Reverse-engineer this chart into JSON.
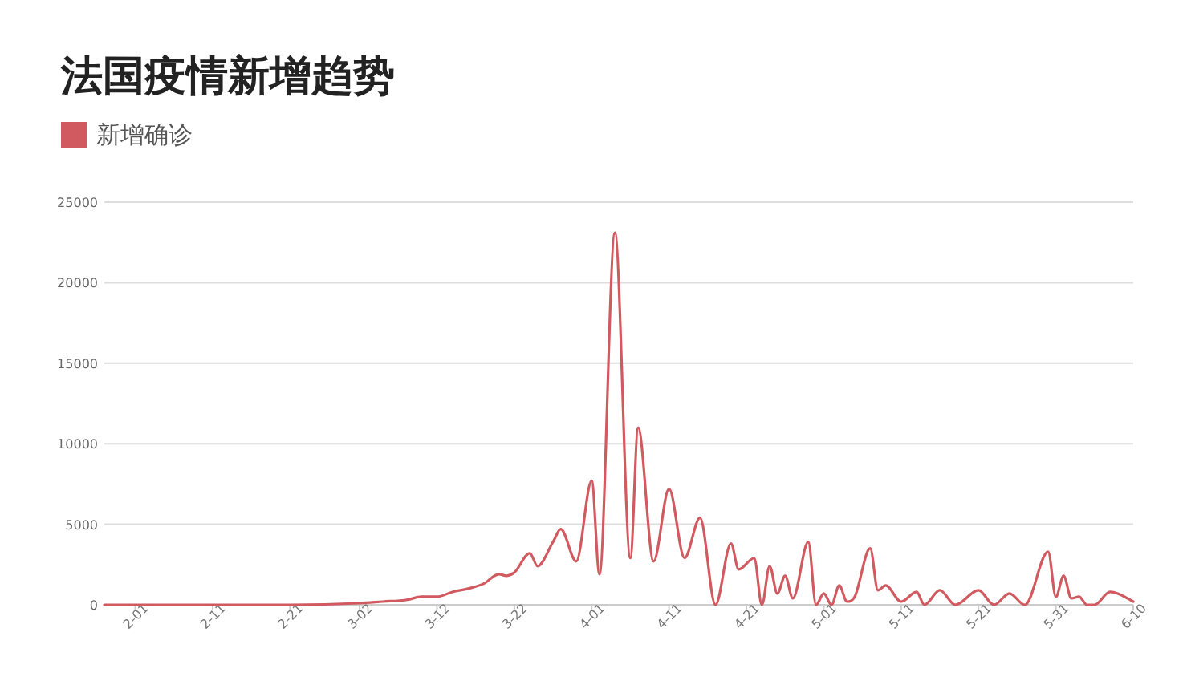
{
  "chart_data": {
    "type": "line",
    "title": "法国疫情新增趋势",
    "legend": "top left",
    "grid": "y",
    "x": [
      "--01-28",
      "--02-01",
      "--02-11",
      "--02-21",
      "--03-02",
      "--03-05",
      "--03-08",
      "--03-10",
      "--03-12",
      "--03-14",
      "--03-16",
      "--03-18",
      "--03-20",
      "--03-21",
      "--03-22",
      "--03-24",
      "--03-25",
      "--03-27",
      "--03-28",
      "--03-30",
      "--04-01",
      "--04-02",
      "--04-04",
      "--04-06",
      "--04-07",
      "--04-09",
      "--04-11",
      "--04-13",
      "--04-15",
      "--04-17",
      "--04-19",
      "--04-20",
      "--04-22",
      "--04-23",
      "--04-24",
      "--04-25",
      "--04-26",
      "--04-27",
      "--04-29",
      "--04-30",
      "--05-01",
      "--05-02",
      "--05-03",
      "--05-04",
      "--05-05",
      "--05-07",
      "--05-08",
      "--05-09",
      "--05-11",
      "--05-13",
      "--05-14",
      "--05-16",
      "--05-18",
      "--05-21",
      "--05-23",
      "--05-25",
      "--05-27",
      "--05-30",
      "--05-31",
      "--06-01",
      "--06-02",
      "--06-03",
      "--06-04",
      "--06-05",
      "--06-07",
      "--06-08",
      "--06-10"
    ],
    "series": [
      {
        "name": "新增确诊",
        "color": "#d05a60",
        "values": [
          0,
          0,
          0,
          0,
          100,
          200,
          300,
          500,
          500,
          800,
          1000,
          1300,
          1900,
          1800,
          2000,
          3200,
          2400,
          3900,
          4700,
          2700,
          7700,
          1900,
          23100,
          2900,
          11000,
          2700,
          7200,
          2900,
          5400,
          0,
          3800,
          2200,
          2900,
          0,
          2400,
          700,
          1800,
          400,
          3900,
          0,
          700,
          0,
          1200,
          200,
          500,
          3500,
          900,
          1200,
          200,
          800,
          0,
          900,
          0,
          900,
          0,
          700,
          0,
          3300,
          500,
          1800,
          400,
          500,
          0,
          0,
          800,
          700,
          200
        ]
      }
    ],
    "xlim": [
      "--01-28",
      "--06-10"
    ],
    "xticks": [
      {
        "value": "--02-01",
        "label": "2-01"
      },
      {
        "value": "--02-11",
        "label": "2-11"
      },
      {
        "value": "--02-21",
        "label": "2-21"
      },
      {
        "value": "--03-02",
        "label": "3-02"
      },
      {
        "value": "--03-12",
        "label": "3-12"
      },
      {
        "value": "--03-22",
        "label": "3-22"
      },
      {
        "value": "--04-01",
        "label": "4-01"
      },
      {
        "value": "--04-11",
        "label": "4-11"
      },
      {
        "value": "--04-21",
        "label": "4-21"
      },
      {
        "value": "--05-01",
        "label": "5-01"
      },
      {
        "value": "--05-11",
        "label": "5-11"
      },
      {
        "value": "--05-21",
        "label": "5-21"
      },
      {
        "value": "--05-31",
        "label": "5-31"
      },
      {
        "value": "--06-10",
        "label": "6-10"
      }
    ],
    "ylim": [
      0,
      25000
    ],
    "yticks": [
      0,
      5000,
      10000,
      15000,
      20000,
      25000
    ]
  }
}
